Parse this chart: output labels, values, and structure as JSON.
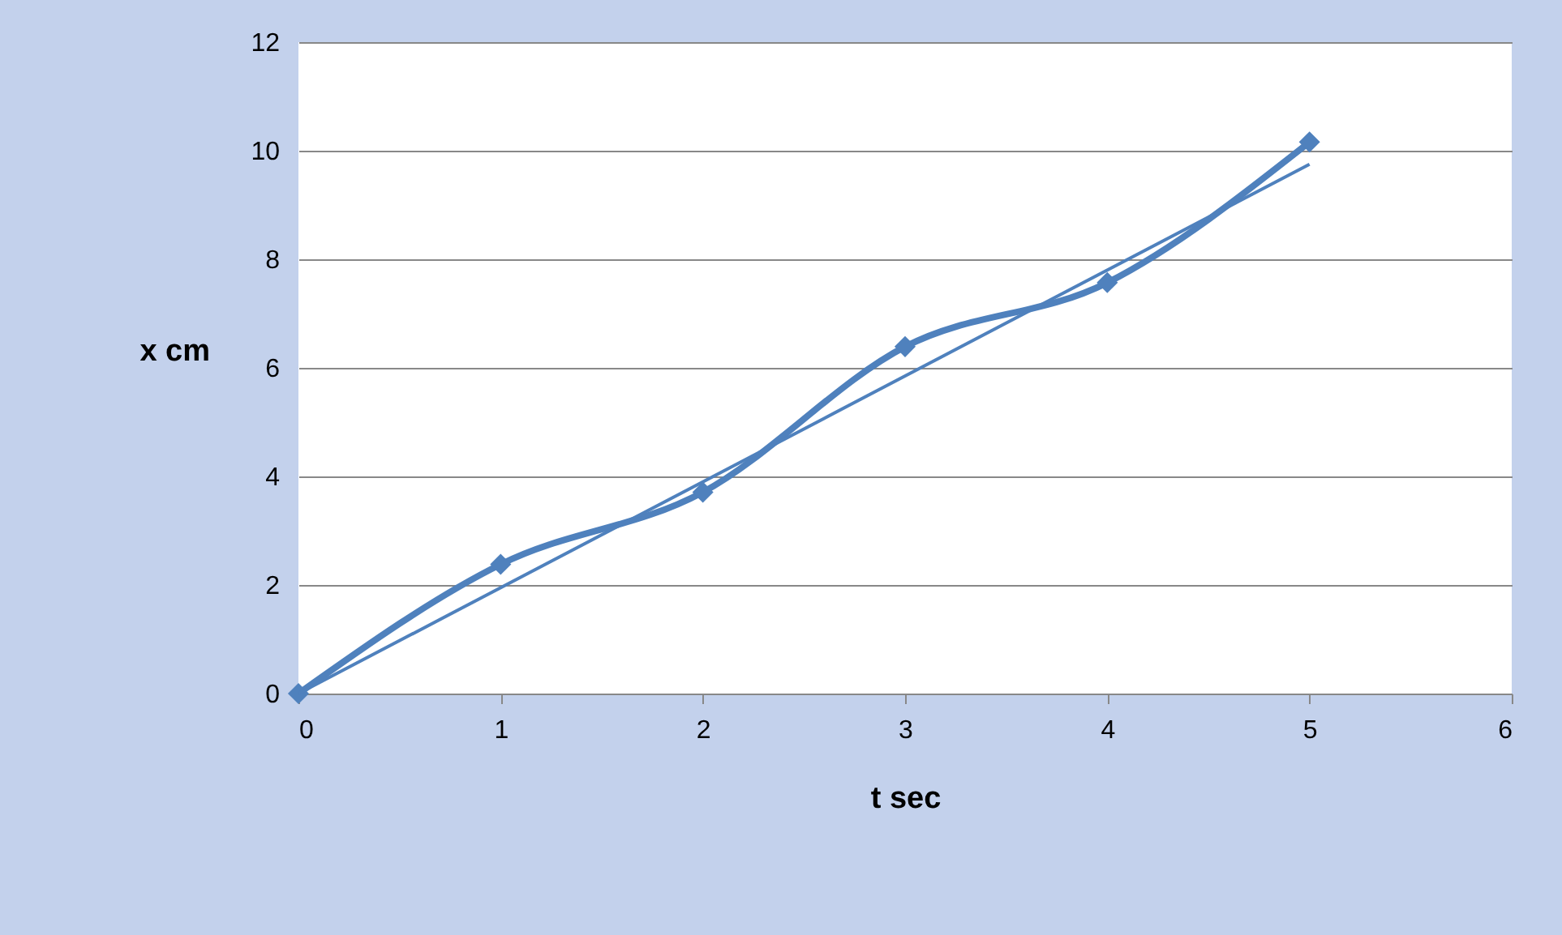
{
  "chart_data": {
    "type": "line",
    "xlabel": "t sec",
    "ylabel": "x cm",
    "xlim": [
      0,
      6
    ],
    "xticks": [
      0,
      1,
      2,
      3,
      4,
      5,
      6
    ],
    "ylim": [
      0,
      12
    ],
    "yticks": [
      0,
      2,
      4,
      6,
      8,
      10,
      12
    ],
    "grid": "y",
    "marker": "diamond",
    "series": [
      {
        "color": "#4f81bd",
        "x": [
          0,
          1,
          2,
          3,
          4,
          5
        ],
        "values": [
          0,
          2.38,
          3.71,
          6.39,
          7.57,
          10.16
        ]
      },
      {
        "type": "line",
        "marker": "none",
        "color": "#4f81bd",
        "x": [
          0,
          5
        ],
        "values": [
          0,
          9.75
        ]
      }
    ]
  }
}
